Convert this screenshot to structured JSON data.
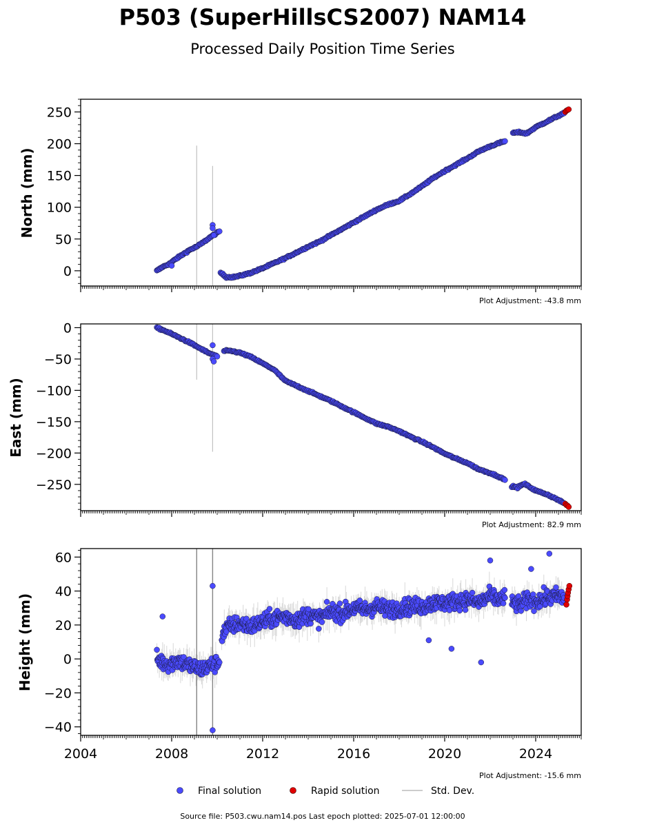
{
  "title": "P503 (SuperHillsCS2007) NAM14",
  "subtitle": "Processed Daily Position Time Series",
  "source_text": "Source file: P503.cwu.nam14.pos  Last epoch plotted: 2025-07-01 12:00:00",
  "legend": {
    "final": "Final solution",
    "rapid": "Rapid solution",
    "std": "Std. Dev."
  },
  "colors": {
    "final": "#4a4aff",
    "rapid": "#e00000",
    "std": "#bbbbbb",
    "edge": "#1a1a3a"
  },
  "chart_data": [
    {
      "type": "scatter",
      "ylabel": "North (mm)",
      "adjustment": "Plot Adjustment: -43.8 mm",
      "xlim": [
        2004,
        2026
      ],
      "ylim": [
        -24,
        270
      ],
      "yticks": [
        0,
        50,
        100,
        150,
        200,
        250
      ],
      "yticklabels": [
        "0",
        "50",
        "100",
        "150",
        "200",
        "250"
      ],
      "segments": [
        {
          "x": [
            2007.35,
            2007.6,
            2007.9,
            2008.2,
            2008.5,
            2008.8,
            2009.1,
            2009.4,
            2009.7,
            2010.1
          ],
          "y": [
            0,
            6,
            11,
            19,
            26,
            33,
            38,
            45,
            53,
            62
          ]
        },
        {
          "x": [
            2010.15,
            2010.4,
            2010.7,
            2011.0,
            2011.5,
            2012.0,
            2012.5,
            2013.0,
            2013.5,
            2014.0,
            2014.5,
            2015.0,
            2015.5,
            2016.0,
            2016.5,
            2017.0,
            2017.5,
            2018.0,
            2018.5,
            2019.0,
            2019.5,
            2020.0,
            2020.5,
            2021.0,
            2021.5,
            2022.0,
            2022.4,
            2022.65
          ],
          "y": [
            -3,
            -10,
            -10,
            -8,
            -3,
            4,
            12,
            20,
            29,
            38,
            46,
            56,
            66,
            76,
            86,
            96,
            104,
            110,
            121,
            133,
            146,
            157,
            167,
            177,
            188,
            196,
            201,
            204
          ]
        },
        {
          "x": [
            2023.0,
            2023.3,
            2023.6,
            2024.0,
            2024.5,
            2025.0,
            2025.25
          ],
          "y": [
            217,
            218,
            216,
            226,
            235,
            244,
            248
          ]
        }
      ],
      "rapid": {
        "x": [
          2025.3,
          2025.35,
          2025.4,
          2025.45
        ],
        "y": [
          250,
          252,
          253,
          254
        ]
      },
      "outliers": {
        "x": [
          2009.8,
          2009.8,
          2009.85,
          2008.0
        ],
        "y": [
          72,
          67,
          56,
          8
        ]
      },
      "stddev_spikes": [
        {
          "x": 2009.1,
          "low": -24,
          "high": 197
        },
        {
          "x": 2009.8,
          "low": -24,
          "high": 165
        }
      ],
      "series": [
        {
          "name": "Final solution"
        },
        {
          "name": "Rapid solution"
        },
        {
          "name": "Std. Dev."
        }
      ]
    },
    {
      "type": "scatter",
      "ylabel": "East (mm)",
      "adjustment": "Plot Adjustment: 82.9 mm",
      "xlim": [
        2004,
        2026
      ],
      "ylim": [
        -292,
        6
      ],
      "yticks": [
        0,
        -50,
        -100,
        -150,
        -200,
        -250
      ],
      "yticklabels": [
        "0",
        "−50",
        "−100",
        "−150",
        "−200",
        "−250"
      ],
      "segments": [
        {
          "x": [
            2007.35,
            2007.7,
            2008.0,
            2008.4,
            2008.8,
            2009.2,
            2009.6,
            2010.0
          ],
          "y": [
            0,
            -5,
            -10,
            -17,
            -24,
            -32,
            -40,
            -46
          ]
        },
        {
          "x": [
            2010.3,
            2010.6,
            2011.0,
            2011.5,
            2012.0,
            2012.5,
            2013.0,
            2013.5,
            2014.0,
            2014.5,
            2015.0,
            2015.5,
            2016.0,
            2016.5,
            2017.0,
            2017.5,
            2018.0,
            2018.5,
            2019.0,
            2019.5,
            2020.0,
            2020.5,
            2021.0,
            2021.5,
            2022.0,
            2022.4,
            2022.65
          ],
          "y": [
            -37,
            -37,
            -40,
            -47,
            -57,
            -67,
            -85,
            -93,
            -101,
            -109,
            -117,
            -126,
            -135,
            -144,
            -153,
            -158,
            -165,
            -174,
            -182,
            -191,
            -201,
            -209,
            -216,
            -226,
            -232,
            -238,
            -243
          ]
        },
        {
          "x": [
            2022.95,
            2023.2,
            2023.5,
            2024.0,
            2024.5,
            2025.0,
            2025.25
          ],
          "y": [
            -253,
            -255,
            -249,
            -260,
            -266,
            -275,
            -280
          ]
        }
      ],
      "rapid": {
        "x": [
          2025.3,
          2025.35,
          2025.4,
          2025.45
        ],
        "y": [
          -281,
          -283,
          -284,
          -286
        ]
      },
      "outliers": {
        "x": [
          2009.8,
          2009.8,
          2009.85
        ],
        "y": [
          -28,
          -50,
          -54
        ]
      },
      "stddev_spikes": [
        {
          "x": 2009.1,
          "low": -83,
          "high": 6
        },
        {
          "x": 2009.8,
          "low": -198,
          "high": 6
        }
      ]
    },
    {
      "type": "scatter",
      "ylabel": "Height (mm)",
      "adjustment": "Plot Adjustment: -15.6 mm",
      "xlim": [
        2004,
        2026
      ],
      "ylim": [
        -45,
        65
      ],
      "yticks": [
        60,
        40,
        20,
        0,
        -20,
        -40
      ],
      "yticklabels": [
        "60",
        "40",
        "20",
        "0",
        "−20",
        "−40"
      ],
      "xticks": [
        2004,
        2008,
        2012,
        2016,
        2020,
        2024
      ],
      "xticklabels": [
        "2004",
        "2008",
        "2012",
        "2016",
        "2020",
        "2024"
      ],
      "segments": [
        {
          "x": [
            2007.35,
            2007.8,
            2008.3,
            2008.8,
            2009.3,
            2009.7,
            2010.1
          ],
          "y": [
            0,
            -3,
            -1,
            -4,
            -6,
            -4,
            -2
          ]
        },
        {
          "x": [
            2010.2,
            2010.5,
            2011.0,
            2011.5,
            2012.0,
            2012.5,
            2013.0,
            2013.5,
            2014.0,
            2014.5,
            2015.0,
            2015.5,
            2016.0,
            2016.5,
            2017.0,
            2017.5,
            2018.0,
            2018.5,
            2019.0,
            2019.5,
            2020.0,
            2020.5,
            2021.0,
            2021.5,
            2022.0,
            2022.4,
            2022.65
          ],
          "y": [
            14,
            19,
            21,
            19,
            22,
            24,
            25,
            23,
            26,
            24,
            28,
            27,
            30,
            29,
            31,
            29,
            30,
            31,
            31,
            33,
            33,
            34,
            35,
            33,
            37,
            35,
            36
          ]
        },
        {
          "x": [
            2022.95,
            2023.3,
            2023.7,
            2024.0,
            2024.5,
            2025.0,
            2025.25
          ],
          "y": [
            33,
            32,
            35,
            34,
            36,
            37,
            36
          ]
        }
      ],
      "spread": 5,
      "rapid": {
        "x": [
          2025.35,
          2025.38,
          2025.4,
          2025.42,
          2025.45,
          2025.48
        ],
        "y": [
          32,
          35,
          37,
          39,
          41,
          43
        ]
      },
      "outliers": {
        "x": [
          2007.6,
          2009.8,
          2009.8,
          2021.6,
          2019.3,
          2020.3,
          2024.6,
          2022.0,
          2023.8
        ],
        "y": [
          25,
          43,
          -42,
          -2,
          11,
          6,
          62,
          58,
          53
        ]
      },
      "stddev_spikes": [
        {
          "x": 2009.1,
          "low": -45,
          "high": 65
        },
        {
          "x": 2009.8,
          "low": -45,
          "high": 65
        }
      ]
    }
  ]
}
